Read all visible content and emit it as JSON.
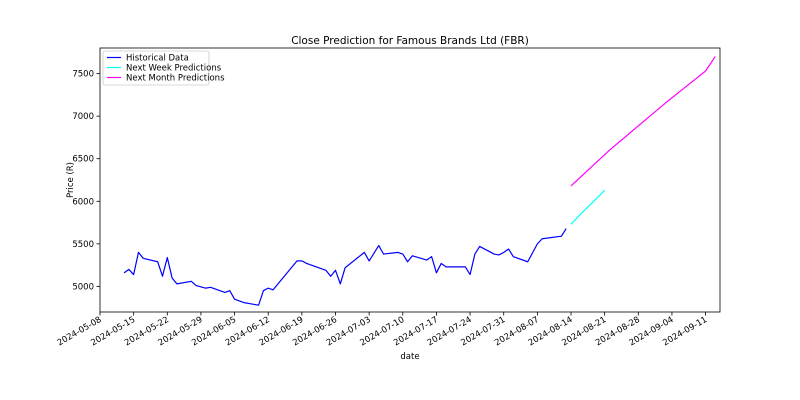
{
  "chart_data": {
    "type": "line",
    "title": "Close Prediction for Famous Brands Ltd (FBR)",
    "xlabel": "date",
    "ylabel": "Price (R)",
    "xlim": [
      "2024-05-08",
      "2024-09-14"
    ],
    "ylim": [
      4700,
      7800
    ],
    "x_ticks": [
      "2024-05-08",
      "2024-05-15",
      "2024-05-22",
      "2024-05-29",
      "2024-06-05",
      "2024-06-12",
      "2024-06-19",
      "2024-06-26",
      "2024-07-03",
      "2024-07-10",
      "2024-07-17",
      "2024-07-24",
      "2024-07-31",
      "2024-08-07",
      "2024-08-14",
      "2024-08-21",
      "2024-08-28",
      "2024-09-04",
      "2024-09-11"
    ],
    "y_ticks": [
      5000,
      5500,
      6000,
      6500,
      7000,
      7500
    ],
    "grid": false,
    "legend_position": "top-left",
    "series": [
      {
        "name": "Historical Data",
        "color": "#0000ff",
        "points": [
          [
            "2024-05-13",
            5160
          ],
          [
            "2024-05-14",
            5200
          ],
          [
            "2024-05-15",
            5140
          ],
          [
            "2024-05-16",
            5400
          ],
          [
            "2024-05-17",
            5330
          ],
          [
            "2024-05-20",
            5290
          ],
          [
            "2024-05-21",
            5120
          ],
          [
            "2024-05-22",
            5340
          ],
          [
            "2024-05-23",
            5100
          ],
          [
            "2024-05-24",
            5030
          ],
          [
            "2024-05-27",
            5060
          ],
          [
            "2024-05-28",
            5010
          ],
          [
            "2024-05-30",
            4980
          ],
          [
            "2024-05-31",
            4990
          ],
          [
            "2024-06-03",
            4930
          ],
          [
            "2024-06-04",
            4950
          ],
          [
            "2024-06-05",
            4850
          ],
          [
            "2024-06-07",
            4810
          ],
          [
            "2024-06-10",
            4780
          ],
          [
            "2024-06-11",
            4950
          ],
          [
            "2024-06-12",
            4980
          ],
          [
            "2024-06-13",
            4960
          ],
          [
            "2024-06-18",
            5300
          ],
          [
            "2024-06-19",
            5300
          ],
          [
            "2024-06-20",
            5270
          ],
          [
            "2024-06-24",
            5190
          ],
          [
            "2024-06-25",
            5120
          ],
          [
            "2024-06-26",
            5190
          ],
          [
            "2024-06-27",
            5030
          ],
          [
            "2024-06-28",
            5220
          ],
          [
            "2024-07-02",
            5400
          ],
          [
            "2024-07-03",
            5300
          ],
          [
            "2024-07-05",
            5480
          ],
          [
            "2024-07-06",
            5380
          ],
          [
            "2024-07-09",
            5400
          ],
          [
            "2024-07-10",
            5380
          ],
          [
            "2024-07-11",
            5290
          ],
          [
            "2024-07-12",
            5360
          ],
          [
            "2024-07-15",
            5310
          ],
          [
            "2024-07-16",
            5350
          ],
          [
            "2024-07-17",
            5160
          ],
          [
            "2024-07-18",
            5270
          ],
          [
            "2024-07-19",
            5230
          ],
          [
            "2024-07-22",
            5230
          ],
          [
            "2024-07-23",
            5230
          ],
          [
            "2024-07-24",
            5140
          ],
          [
            "2024-07-25",
            5380
          ],
          [
            "2024-07-26",
            5470
          ],
          [
            "2024-07-29",
            5380
          ],
          [
            "2024-07-30",
            5370
          ],
          [
            "2024-07-31",
            5400
          ],
          [
            "2024-08-01",
            5440
          ],
          [
            "2024-08-02",
            5350
          ],
          [
            "2024-08-05",
            5290
          ],
          [
            "2024-08-07",
            5500
          ],
          [
            "2024-08-08",
            5560
          ],
          [
            "2024-08-12",
            5590
          ],
          [
            "2024-08-13",
            5680
          ]
        ]
      },
      {
        "name": "Next Week Predictions",
        "color": "#00ffff",
        "points": [
          [
            "2024-08-14",
            5730
          ],
          [
            "2024-08-16",
            5850
          ],
          [
            "2024-08-18",
            5960
          ],
          [
            "2024-08-20",
            6070
          ],
          [
            "2024-08-21",
            6130
          ]
        ]
      },
      {
        "name": "Next Month Predictions",
        "color": "#ff00ff",
        "points": [
          [
            "2024-08-14",
            6180
          ],
          [
            "2024-08-18",
            6390
          ],
          [
            "2024-08-22",
            6600
          ],
          [
            "2024-08-26",
            6790
          ],
          [
            "2024-08-30",
            6980
          ],
          [
            "2024-09-03",
            7170
          ],
          [
            "2024-09-07",
            7350
          ],
          [
            "2024-09-11",
            7530
          ],
          [
            "2024-09-13",
            7700
          ]
        ]
      }
    ]
  }
}
